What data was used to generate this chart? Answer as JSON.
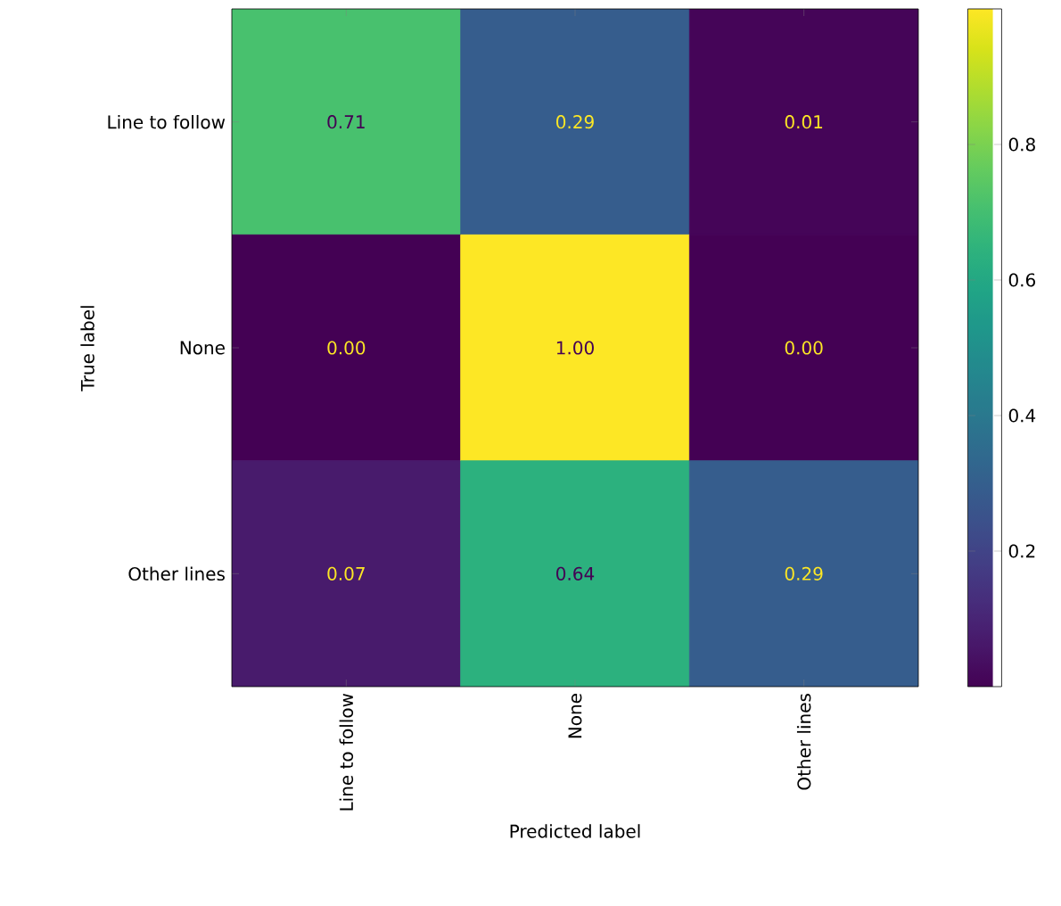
{
  "chart_data": {
    "type": "heatmap",
    "xlabel": "Predicted label",
    "ylabel": "True label",
    "categories": [
      "Line to follow",
      "None",
      "Other lines"
    ],
    "y_categories": [
      "Line to follow",
      "None",
      "Other lines"
    ],
    "cells": [
      [
        0.71,
        0.29,
        0.01
      ],
      [
        0.0,
        1.0,
        0.0
      ],
      [
        0.07,
        0.64,
        0.29
      ]
    ],
    "cell_labels": [
      [
        "0.71",
        "0.29",
        "0.01"
      ],
      [
        "0.00",
        "1.00",
        "0.00"
      ],
      [
        "0.07",
        "0.64",
        "0.29"
      ]
    ],
    "clim": [
      0,
      1
    ],
    "cticks": [
      0.2,
      0.4,
      0.6,
      0.8
    ]
  }
}
